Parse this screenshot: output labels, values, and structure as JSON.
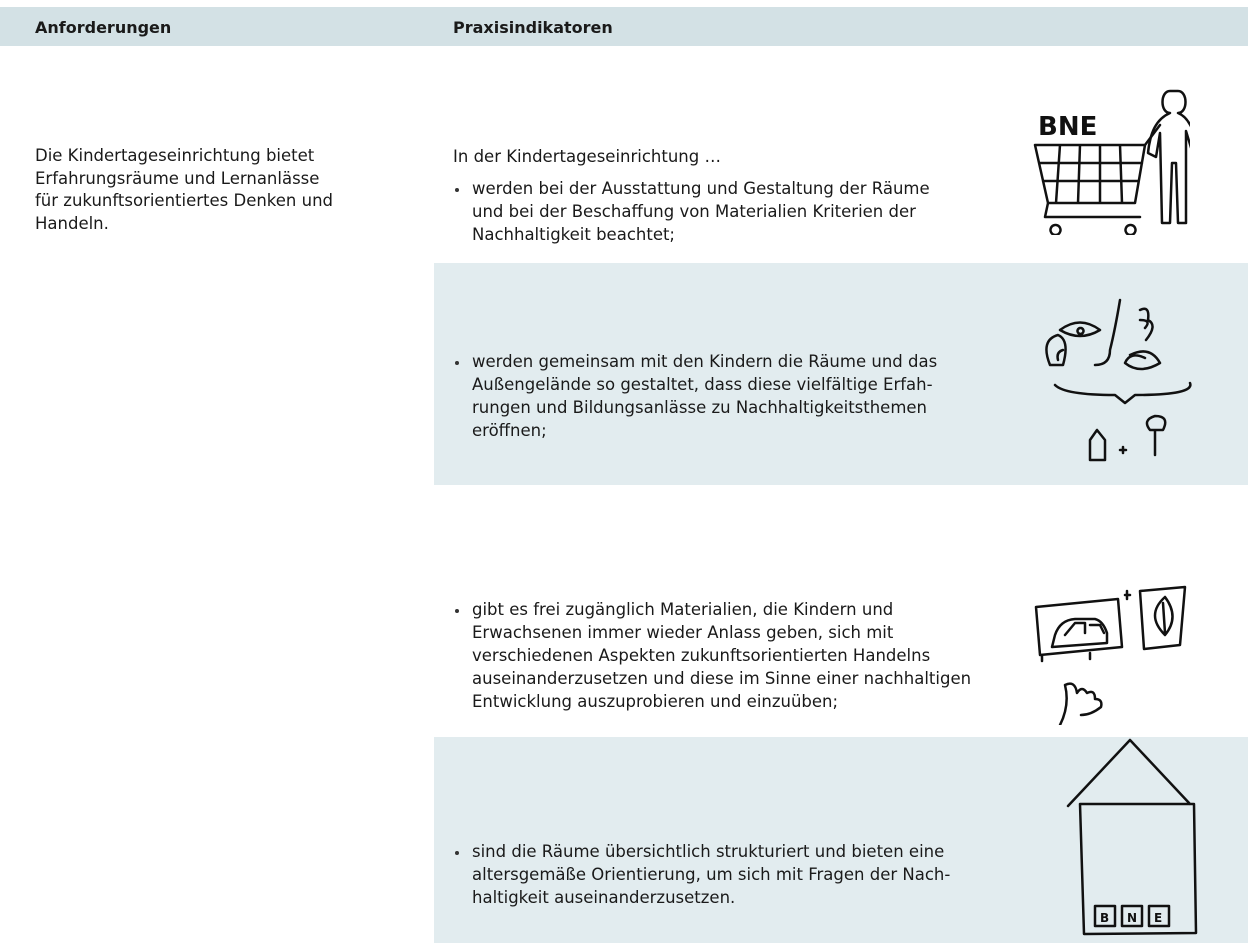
{
  "header": {
    "columns": [
      "Anforderungen",
      "Praxisindikatoren"
    ]
  },
  "requirement": {
    "lines": [
      "Die Kindertageseinrichtung bietet",
      "Erfahrungsräume und Lernanlässe",
      "für zukunftsorientiertes Denken und",
      "Handeln."
    ]
  },
  "indicators": {
    "intro": "In der Kindertageseinrichtung …",
    "items": [
      {
        "lines": [
          "werden bei der Ausstattung und Gestaltung der Räume",
          "und bei der Beschaffung von Materialien Kriterien der",
          "Nachhaltigkeit beachtet;"
        ],
        "icon_label": "BNE"
      },
      {
        "lines": [
          "werden gemeinsam mit den Kindern die Räume und das",
          "Außengelände so gestaltet, dass diese vielfältige Erfah-",
          "rungen und Bildungsanlässe zu Nachhaltigkeitsthemen",
          "eröffnen;"
        ]
      },
      {
        "lines": [
          "gibt es frei zugänglich Materialien, die Kindern und",
          "Erwachsenen immer wieder Anlass geben, sich mit",
          "verschiedenen Aspekten zukunftsorientierten Handelns",
          "auseinanderzusetzen und diese im Sinne einer nachhaltigen",
          "Entwicklung auszuprobieren und einzuüben;"
        ]
      },
      {
        "lines": [
          "sind die Räume übersichtlich strukturiert und bieten eine",
          "altersgemäße Orientierung, um sich mit Fragen der Nach-",
          "haltigkeit auseinanderzusetzen."
        ],
        "icon_letters": [
          "B",
          "N",
          "E"
        ]
      }
    ]
  }
}
